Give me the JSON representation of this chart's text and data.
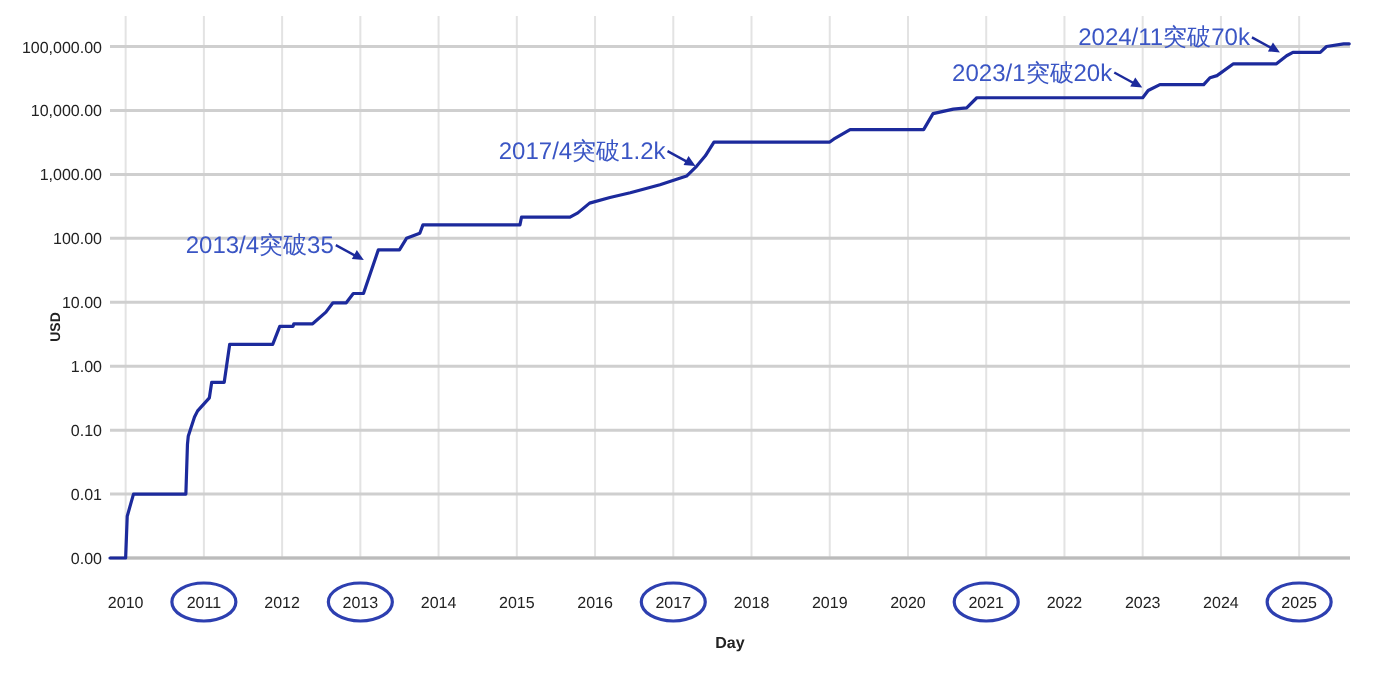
{
  "chart_data": {
    "type": "line",
    "xlabel": "Day",
    "ylabel": "USD",
    "color": "#1c2a9c",
    "log": "y",
    "grid": true,
    "xlim": [
      2009.8,
      2025.65
    ],
    "ylim": [
      0.001,
      300000
    ],
    "xticks": [
      2010,
      2011,
      2012,
      2013,
      2014,
      2015,
      2016,
      2017,
      2018,
      2019,
      2020,
      2021,
      2022,
      2023,
      2024,
      2025
    ],
    "yticks": [
      {
        "value": 0.001,
        "label": "0.00"
      },
      {
        "value": 0.01,
        "label": "0.01"
      },
      {
        "value": 0.1,
        "label": "0.10"
      },
      {
        "value": 1,
        "label": "1.00"
      },
      {
        "value": 10,
        "label": "10.00"
      },
      {
        "value": 100,
        "label": "100.00"
      },
      {
        "value": 1000,
        "label": "1,000.00"
      },
      {
        "value": 10000,
        "label": "10,000.00"
      },
      {
        "value": 100000,
        "label": "100,000.00"
      }
    ],
    "x": [
      2009.8,
      2010.0,
      2010.02,
      2010.1,
      2010.77,
      2010.79,
      2010.8,
      2010.88,
      2010.92,
      2011.07,
      2011.1,
      2011.26,
      2011.33,
      2011.88,
      2011.97,
      2012.14,
      2012.15,
      2012.39,
      2012.56,
      2012.65,
      2012.82,
      2012.91,
      2013.04,
      2013.23,
      2013.5,
      2013.59,
      2013.76,
      2013.8,
      2015.04,
      2015.06,
      2015.68,
      2015.78,
      2015.93,
      2016.19,
      2016.45,
      2016.83,
      2017.17,
      2017.3,
      2017.41,
      2017.52,
      2019.0,
      2019.05,
      2019.26,
      2020.2,
      2020.32,
      2020.58,
      2020.75,
      2020.88,
      2023.0,
      2023.07,
      2023.22,
      2023.78,
      2023.86,
      2023.95,
      2024.16,
      2024.71,
      2024.84,
      2024.92,
      2025.27,
      2025.35,
      2025.57,
      2025.64
    ],
    "values": [
      0.001,
      0.001,
      0.0045,
      0.01,
      0.01,
      0.06,
      0.08,
      0.16,
      0.2,
      0.32,
      0.56,
      0.56,
      2.2,
      2.2,
      4.2,
      4.2,
      4.6,
      4.6,
      7,
      9.8,
      9.8,
      13.7,
      13.7,
      66,
      66,
      100,
      120,
      162,
      162,
      214,
      214,
      250,
      355,
      435,
      515,
      690,
      940,
      1350,
      1950,
      3200,
      3200,
      3550,
      5000,
      5000,
      8900,
      10500,
      11000,
      15800,
      15800,
      20500,
      25300,
      25300,
      32500,
      35000,
      53700,
      53700,
      71700,
      81000,
      81000,
      100000,
      110000,
      110000
    ],
    "annotations": [
      {
        "text": "2013/4突破35",
        "x": 2013.07,
        "y": 44
      },
      {
        "text": "2017/4突破1.2k",
        "x": 2017.31,
        "y": 1300
      },
      {
        "text": "2023/1突破20k",
        "x": 2023.02,
        "y": 22000
      },
      {
        "text": "2024/11突破70k",
        "x": 2024.78,
        "y": 78000
      }
    ]
  }
}
